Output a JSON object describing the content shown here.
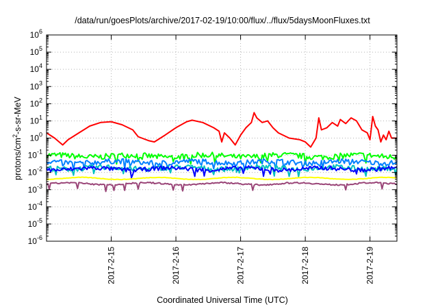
{
  "chart_data": {
    "type": "line",
    "title": "/data/run/goesPlots/archive/2017-02-19/10:00/flux/../flux/5daysMoonFluxes.txt",
    "xlabel": "Coordinated Universal Time (UTC)",
    "ylabel": {
      "prefix": "protons/cm",
      "sup": "2",
      "suffix": "-s-sr-MeV"
    },
    "y_scale": "log",
    "ylim": [
      1e-06,
      1000000.0
    ],
    "y_ticks": [
      {
        "value": 1e-06,
        "base": "10",
        "exp": "-6"
      },
      {
        "value": 1e-05,
        "base": "10",
        "exp": "-5"
      },
      {
        "value": 0.0001,
        "base": "10",
        "exp": "-4"
      },
      {
        "value": 0.001,
        "base": "10",
        "exp": "-3"
      },
      {
        "value": 0.01,
        "base": "10",
        "exp": "-2"
      },
      {
        "value": 0.1,
        "base": "10",
        "exp": "-1"
      },
      {
        "value": 1,
        "base": "10",
        "exp": "0"
      },
      {
        "value": 10,
        "base": "10",
        "exp": "1"
      },
      {
        "value": 100,
        "base": "10",
        "exp": "2"
      },
      {
        "value": 1000,
        "base": "10",
        "exp": "3"
      },
      {
        "value": 10000,
        "base": "10",
        "exp": "4"
      },
      {
        "value": 100000,
        "base": "10",
        "exp": "5"
      },
      {
        "value": 1000000,
        "base": "10",
        "exp": "6"
      }
    ],
    "xlim": [
      "2017-02-14T00:00",
      "2017-02-19T10:00"
    ],
    "x_ticks": [
      {
        "label": "2017-2-15",
        "value": "2017-02-15T00:00"
      },
      {
        "label": "2017-2-16",
        "value": "2017-02-16T00:00"
      },
      {
        "label": "2017-2-17",
        "value": "2017-02-17T00:00"
      },
      {
        "label": "2017-2-18",
        "value": "2017-02-18T00:00"
      },
      {
        "label": "2017-2-19",
        "value": "2017-02-19T00:00"
      }
    ],
    "grid": true,
    "legend": "none",
    "series": [
      {
        "color": "#ff0000",
        "points": [
          [
            "2017-02-14T00:00",
            2.0
          ],
          [
            "2017-02-14T03:00",
            1.0
          ],
          [
            "2017-02-14T06:00",
            0.4
          ],
          [
            "2017-02-14T08:00",
            0.8
          ],
          [
            "2017-02-14T12:00",
            2.0
          ],
          [
            "2017-02-14T16:00",
            5.0
          ],
          [
            "2017-02-14T20:00",
            8.0
          ],
          [
            "2017-02-15T00:00",
            9.0
          ],
          [
            "2017-02-15T04:00",
            6.0
          ],
          [
            "2017-02-15T08:00",
            3.0
          ],
          [
            "2017-02-15T10:00",
            1.2
          ],
          [
            "2017-02-15T14:00",
            0.7
          ],
          [
            "2017-02-15T16:00",
            0.6
          ],
          [
            "2017-02-15T20:00",
            1.5
          ],
          [
            "2017-02-16T00:00",
            4.0
          ],
          [
            "2017-02-16T04:00",
            9.0
          ],
          [
            "2017-02-16T06:00",
            11.0
          ],
          [
            "2017-02-16T10:00",
            8.0
          ],
          [
            "2017-02-16T14:00",
            4.0
          ],
          [
            "2017-02-16T16:00",
            2.5
          ],
          [
            "2017-02-16T17:00",
            0.6
          ],
          [
            "2017-02-16T18:00",
            2.0
          ],
          [
            "2017-02-16T20:00",
            1.0
          ],
          [
            "2017-02-16T22:00",
            0.4
          ],
          [
            "2017-02-17T00:00",
            1.5
          ],
          [
            "2017-02-17T02:00",
            4.0
          ],
          [
            "2017-02-17T04:00",
            8.0
          ],
          [
            "2017-02-17T05:00",
            30.0
          ],
          [
            "2017-02-17T06:00",
            15.0
          ],
          [
            "2017-02-17T08:00",
            8.0
          ],
          [
            "2017-02-17T10:00",
            10.0
          ],
          [
            "2017-02-17T12:00",
            4.0
          ],
          [
            "2017-02-17T14:00",
            2.0
          ],
          [
            "2017-02-17T18:00",
            1.0
          ],
          [
            "2017-02-17T22:00",
            0.8
          ],
          [
            "2017-02-18T00:00",
            0.6
          ],
          [
            "2017-02-18T02:00",
            0.3
          ],
          [
            "2017-02-18T04:00",
            1.0
          ],
          [
            "2017-02-18T05:00",
            15.0
          ],
          [
            "2017-02-18T06:00",
            3.0
          ],
          [
            "2017-02-18T08:00",
            4.0
          ],
          [
            "2017-02-18T10:00",
            8.0
          ],
          [
            "2017-02-18T12:00",
            5.0
          ],
          [
            "2017-02-18T13:00",
            12.0
          ],
          [
            "2017-02-18T15:00",
            7.0
          ],
          [
            "2017-02-18T17:00",
            15.0
          ],
          [
            "2017-02-18T19:00",
            10.0
          ],
          [
            "2017-02-18T21:00",
            3.0
          ],
          [
            "2017-02-18T23:00",
            2.0
          ],
          [
            "2017-02-19T00:00",
            0.8
          ],
          [
            "2017-02-19T01:00",
            18.0
          ],
          [
            "2017-02-19T02:00",
            5.0
          ],
          [
            "2017-02-19T03:00",
            3.0
          ],
          [
            "2017-02-19T04:00",
            0.6
          ],
          [
            "2017-02-19T05:00",
            1.5
          ],
          [
            "2017-02-19T06:00",
            0.8
          ],
          [
            "2017-02-19T07:00",
            2.5
          ],
          [
            "2017-02-19T08:00",
            1.0
          ],
          [
            "2017-02-19T10:00",
            1.0
          ]
        ]
      },
      {
        "color": "#00ff00",
        "level": 0.09,
        "spread": 0.33
      },
      {
        "color": "#0080ff",
        "level": 0.04,
        "spread": 0.3
      },
      {
        "color": "#00c0c0",
        "level": 0.018,
        "spread": 0.3
      },
      {
        "color": "#0000ff",
        "level": 0.016,
        "spread": 0.25
      },
      {
        "color": "#ffff00",
        "level": 0.0045,
        "spread": 0.03
      },
      {
        "color": "#994477",
        "level": 0.0022,
        "spread": 0.08
      }
    ]
  }
}
